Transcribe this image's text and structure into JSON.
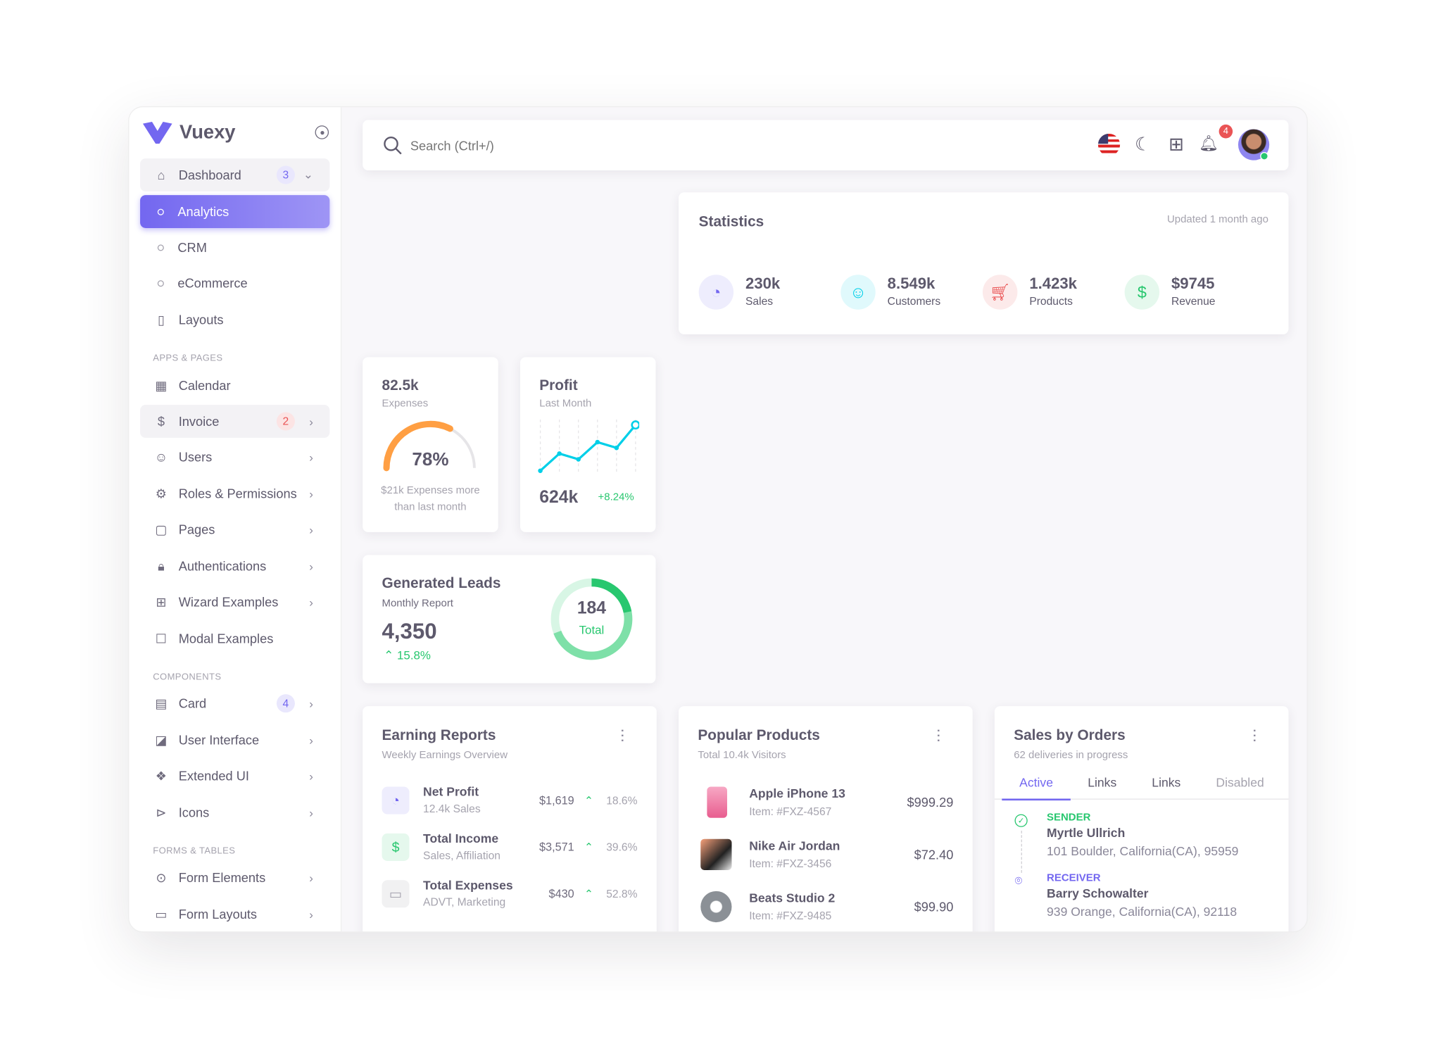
{
  "brand": {
    "name": "Vuexy",
    "accent": "#7367f0"
  },
  "sidebar": {
    "dashboard": {
      "label": "Dashboard",
      "badge": "3"
    },
    "dashboard_children": [
      {
        "label": "Analytics"
      },
      {
        "label": "CRM"
      },
      {
        "label": "eCommerce"
      }
    ],
    "layouts": "Layouts",
    "sections": {
      "apps": "APPS & PAGES",
      "components": "COMPONENTS",
      "forms": "FORMS & TABLES"
    },
    "apps": [
      {
        "label": "Calendar"
      },
      {
        "label": "Invoice",
        "badge": "2"
      },
      {
        "label": "Users"
      },
      {
        "label": "Roles & Permissions"
      },
      {
        "label": "Pages"
      },
      {
        "label": "Authentications"
      },
      {
        "label": "Wizard Examples"
      },
      {
        "label": "Modal Examples"
      }
    ],
    "components": [
      {
        "label": "Card",
        "badge": "4"
      },
      {
        "label": "User Interface"
      },
      {
        "label": "Extended UI"
      },
      {
        "label": "Icons"
      }
    ],
    "forms": [
      {
        "label": "Form Elements"
      },
      {
        "label": "Form Layouts"
      }
    ]
  },
  "navbar": {
    "search_placeholder": "Search (Ctrl+/)",
    "notifications": "4"
  },
  "statistics": {
    "title": "Statistics",
    "updated": "Updated 1 month ago",
    "items": [
      {
        "value": "230k",
        "label": "Sales",
        "color": "#7367f0"
      },
      {
        "value": "8.549k",
        "label": "Customers",
        "color": "#00cfe8"
      },
      {
        "value": "1.423k",
        "label": "Products",
        "color": "#ea5455"
      },
      {
        "value": "$9745",
        "label": "Revenue",
        "color": "#28c76f"
      }
    ]
  },
  "expenses": {
    "value": "82.5k",
    "label": "Expenses",
    "percent": "78%",
    "progress": 78,
    "note": "$21k Expenses more than last month"
  },
  "profit": {
    "title": "Profit",
    "subtitle": "Last Month",
    "value": "624k",
    "change": "+8.24%",
    "points": [
      0,
      3,
      2,
      5,
      4,
      8
    ]
  },
  "leads": {
    "title": "Generated Leads",
    "subtitle": "Monthly Report",
    "value": "4,350",
    "change": "15.8%",
    "total": "184",
    "total_label": "Total"
  },
  "earning": {
    "title": "Earning Reports",
    "subtitle": "Weekly Earnings Overview",
    "rows": [
      {
        "title": "Net Profit",
        "sub": "12.4k Sales",
        "amount": "$1,619",
        "change": "18.6%"
      },
      {
        "title": "Total Income",
        "sub": "Sales, Affiliation",
        "amount": "$3,571",
        "change": "39.6%"
      },
      {
        "title": "Total Expenses",
        "sub": "ADVT, Marketing",
        "amount": "$430",
        "change": "52.8%"
      }
    ]
  },
  "popular": {
    "title": "Popular Products",
    "subtitle": "Total 10.4k Visitors",
    "rows": [
      {
        "name": "Apple iPhone 13",
        "item": "Item: #FXZ-4567",
        "price": "$999.29"
      },
      {
        "name": "Nike Air Jordan",
        "item": "Item: #FXZ-3456",
        "price": "$72.40"
      },
      {
        "name": "Beats Studio 2",
        "item": "Item: #FXZ-9485",
        "price": "$99.90"
      }
    ]
  },
  "orders": {
    "title": "Sales by Orders",
    "subtitle": "62 deliveries in progress",
    "tabs": [
      "Active",
      "Links",
      "Links",
      "Disabled"
    ],
    "sender": {
      "label": "SENDER",
      "name": "Myrtle Ullrich",
      "address": "101 Boulder, California(CA), 95959"
    },
    "receiver": {
      "label": "RECEIVER",
      "name": "Barry Schowalter",
      "address": "939 Orange, California(CA), 92118"
    }
  }
}
